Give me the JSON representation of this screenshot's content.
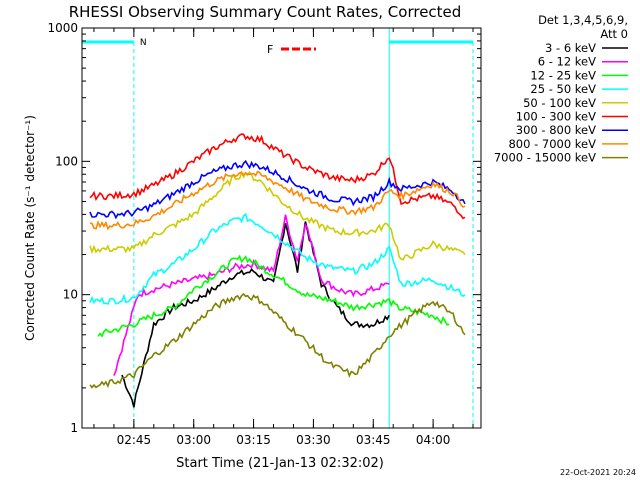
{
  "chart_data": {
    "type": "line",
    "title": "RHESSI Observing Summary Count Rates, Corrected",
    "xlabel": "Start Time (21-Jan-13 02:32:02)",
    "ylabel": "Corrected Count Rate (s⁻¹ detector⁻¹)",
    "y_scale": "log",
    "ylim": [
      1,
      1000
    ],
    "y_ticks": [
      {
        "value": 1,
        "label": "1"
      },
      {
        "value": 10,
        "label": "10"
      },
      {
        "value": 100,
        "label": "100"
      },
      {
        "value": 1000,
        "label": "1000"
      }
    ],
    "xlim": [
      "02:32",
      "04:12"
    ],
    "x_ticks": [
      "02:45",
      "03:00",
      "03:15",
      "03:30",
      "03:45",
      "04:00"
    ],
    "legend_header": [
      "Det 1,3,4,5,6,9,",
      "Att 0"
    ],
    "legend_placement": "right",
    "series": [
      {
        "name": "3 - 6 keV",
        "color": "#000000",
        "points": [
          [
            "02:42",
            2.5
          ],
          [
            "02:45",
            1.5
          ],
          [
            "02:50",
            6
          ],
          [
            "02:55",
            8
          ],
          [
            "03:00",
            9
          ],
          [
            "03:05",
            11
          ],
          [
            "03:10",
            14
          ],
          [
            "03:15",
            15
          ],
          [
            "03:20",
            12
          ],
          [
            "03:23",
            35
          ],
          [
            "03:26",
            15
          ],
          [
            "03:28",
            35
          ],
          [
            "03:32",
            12
          ],
          [
            "03:36",
            8
          ],
          [
            "03:40",
            6
          ],
          [
            "03:45",
            6
          ],
          [
            "03:49",
            7
          ]
        ]
      },
      {
        "name": "6 - 12 keV",
        "color": "#ff00ff",
        "points": [
          [
            "02:40",
            2.5
          ],
          [
            "02:46",
            10
          ],
          [
            "02:50",
            11
          ],
          [
            "02:55",
            12
          ],
          [
            "03:00",
            13
          ],
          [
            "03:05",
            14
          ],
          [
            "03:10",
            16
          ],
          [
            "03:15",
            17
          ],
          [
            "03:20",
            15
          ],
          [
            "03:23",
            38
          ],
          [
            "03:26",
            18
          ],
          [
            "03:28",
            35
          ],
          [
            "03:32",
            13
          ],
          [
            "03:36",
            11
          ],
          [
            "03:40",
            10
          ],
          [
            "03:45",
            11
          ],
          [
            "03:49",
            12
          ]
        ]
      },
      {
        "name": "12 - 25 keV",
        "color": "#00ff00",
        "points": [
          [
            "02:36",
            5
          ],
          [
            "02:45",
            6
          ],
          [
            "02:50",
            7
          ],
          [
            "02:55",
            8
          ],
          [
            "03:00",
            11
          ],
          [
            "03:05",
            14
          ],
          [
            "03:10",
            18
          ],
          [
            "03:13",
            19
          ],
          [
            "03:17",
            16
          ],
          [
            "03:22",
            13
          ],
          [
            "03:28",
            10
          ],
          [
            "03:35",
            9
          ],
          [
            "03:40",
            8
          ],
          [
            "03:45",
            8.5
          ],
          [
            "03:49",
            9
          ],
          [
            "03:51",
            8
          ],
          [
            "04:00",
            7
          ],
          [
            "04:04",
            6
          ]
        ]
      },
      {
        "name": "25 - 50 keV",
        "color": "#00ffff",
        "points": [
          [
            "02:34",
            9
          ],
          [
            "02:40",
            9
          ],
          [
            "02:45",
            9.5
          ],
          [
            "02:50",
            14
          ],
          [
            "02:55",
            17
          ],
          [
            "03:00",
            22
          ],
          [
            "03:05",
            30
          ],
          [
            "03:10",
            36
          ],
          [
            "03:13",
            38
          ],
          [
            "03:17",
            33
          ],
          [
            "03:22",
            26
          ],
          [
            "03:28",
            19
          ],
          [
            "03:34",
            16
          ],
          [
            "03:40",
            15
          ],
          [
            "03:45",
            17
          ],
          [
            "03:49",
            22
          ],
          [
            "03:52",
            12
          ],
          [
            "04:00",
            13
          ],
          [
            "04:08",
            10
          ]
        ]
      },
      {
        "name": "50 - 100 keV",
        "color": "#cccc00",
        "points": [
          [
            "02:34",
            22
          ],
          [
            "02:40",
            22
          ],
          [
            "02:45",
            22
          ],
          [
            "02:50",
            28
          ],
          [
            "02:55",
            33
          ],
          [
            "03:00",
            40
          ],
          [
            "03:05",
            55
          ],
          [
            "03:10",
            75
          ],
          [
            "03:13",
            82
          ],
          [
            "03:17",
            70
          ],
          [
            "03:22",
            50
          ],
          [
            "03:28",
            37
          ],
          [
            "03:35",
            30
          ],
          [
            "03:40",
            29
          ],
          [
            "03:45",
            30
          ],
          [
            "03:49",
            34
          ],
          [
            "03:52",
            18
          ],
          [
            "04:00",
            24
          ],
          [
            "04:08",
            20
          ]
        ]
      },
      {
        "name": "100 - 300 keV",
        "color": "#ff0000",
        "points": [
          [
            "02:34",
            55
          ],
          [
            "02:40",
            55
          ],
          [
            "02:45",
            57
          ],
          [
            "02:50",
            66
          ],
          [
            "02:55",
            80
          ],
          [
            "03:00",
            100
          ],
          [
            "03:05",
            125
          ],
          [
            "03:10",
            148
          ],
          [
            "03:13",
            155
          ],
          [
            "03:17",
            145
          ],
          [
            "03:22",
            115
          ],
          [
            "03:28",
            90
          ],
          [
            "03:35",
            75
          ],
          [
            "03:40",
            72
          ],
          [
            "03:45",
            80
          ],
          [
            "03:49",
            110
          ],
          [
            "03:52",
            50
          ],
          [
            "04:00",
            55
          ],
          [
            "04:05",
            47
          ],
          [
            "04:08",
            38
          ]
        ]
      },
      {
        "name": "300 - 800 keV",
        "color": "#0000ff",
        "points": [
          [
            "02:34",
            40
          ],
          [
            "02:40",
            40
          ],
          [
            "02:45",
            41
          ],
          [
            "02:50",
            47
          ],
          [
            "02:55",
            57
          ],
          [
            "03:00",
            70
          ],
          [
            "03:05",
            83
          ],
          [
            "03:10",
            93
          ],
          [
            "03:13",
            96
          ],
          [
            "03:17",
            91
          ],
          [
            "03:22",
            78
          ],
          [
            "03:28",
            62
          ],
          [
            "03:35",
            52
          ],
          [
            "03:40",
            50
          ],
          [
            "03:45",
            54
          ],
          [
            "03:49",
            70
          ],
          [
            "03:52",
            62
          ],
          [
            "04:00",
            70
          ],
          [
            "04:05",
            60
          ],
          [
            "04:08",
            48
          ]
        ]
      },
      {
        "name": "800 - 7000 keV",
        "color": "#ff8800",
        "points": [
          [
            "02:34",
            33
          ],
          [
            "02:40",
            33
          ],
          [
            "02:45",
            34
          ],
          [
            "02:50",
            39
          ],
          [
            "02:55",
            47
          ],
          [
            "03:00",
            58
          ],
          [
            "03:05",
            70
          ],
          [
            "03:10",
            80
          ],
          [
            "03:13",
            83
          ],
          [
            "03:17",
            78
          ],
          [
            "03:22",
            66
          ],
          [
            "03:28",
            52
          ],
          [
            "03:35",
            44
          ],
          [
            "03:40",
            42
          ],
          [
            "03:45",
            45
          ],
          [
            "03:49",
            60
          ],
          [
            "03:52",
            55
          ],
          [
            "04:00",
            68
          ],
          [
            "04:05",
            58
          ],
          [
            "04:08",
            46
          ]
        ]
      },
      {
        "name": "7000 - 15000 keV",
        "color": "#808000",
        "points": [
          [
            "02:34",
            2
          ],
          [
            "02:40",
            2.2
          ],
          [
            "02:45",
            2.5
          ],
          [
            "02:50",
            3.5
          ],
          [
            "02:55",
            4.5
          ],
          [
            "03:00",
            6
          ],
          [
            "03:05",
            8
          ],
          [
            "03:10",
            9.5
          ],
          [
            "03:13",
            10
          ],
          [
            "03:17",
            9
          ],
          [
            "03:22",
            6.5
          ],
          [
            "03:28",
            4.5
          ],
          [
            "03:34",
            3
          ],
          [
            "03:40",
            2.5
          ],
          [
            "03:45",
            3.5
          ],
          [
            "03:49",
            5
          ],
          [
            "03:55",
            7
          ],
          [
            "04:00",
            9
          ],
          [
            "04:05",
            7
          ],
          [
            "04:08",
            5
          ]
        ]
      }
    ],
    "annotations": [
      {
        "label": "N",
        "color": "#00ffff"
      },
      {
        "label": "F",
        "color": "#ff0000"
      }
    ],
    "footer_date": "22-Oct-2021 20:24"
  }
}
